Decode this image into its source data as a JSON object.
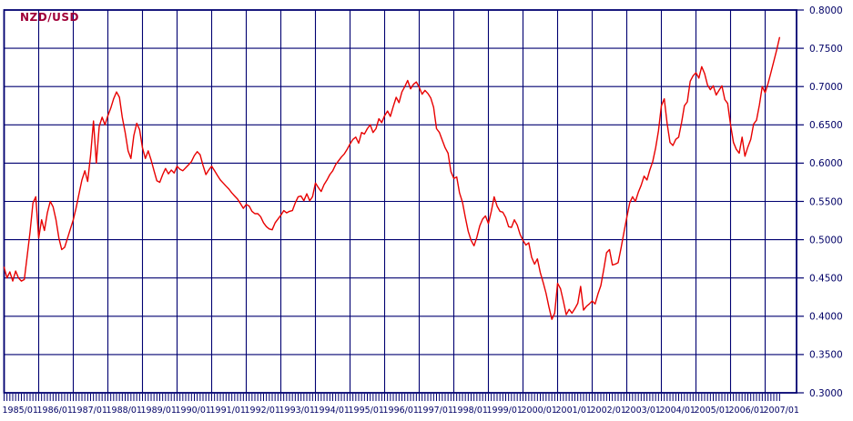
{
  "title": "NZD/USD",
  "colors": {
    "background": "#ffffff",
    "grid": "#000070",
    "axis": "#000070",
    "tick_label": "#000066",
    "title": "#a00038",
    "line": "#e80000"
  },
  "chart_data": {
    "type": "line",
    "title": "NZD/USD",
    "xlabel": "",
    "ylabel": "",
    "frequency": "monthly",
    "x_start": "1985/01",
    "x_end": "2007/06",
    "ylim": [
      0.3,
      0.8
    ],
    "y_step": 0.05,
    "grid": true,
    "legend_position": "none",
    "x_tick_labels": [
      "1985/01",
      "1986/01",
      "1987/01",
      "1988/01",
      "1989/01",
      "1990/01",
      "1991/01",
      "1992/01",
      "1993/01",
      "1994/01",
      "1995/01",
      "1996/01",
      "1997/01",
      "1998/01",
      "1999/01",
      "2000/01",
      "2001/01",
      "2002/01",
      "2003/01",
      "2004/01",
      "2005/01",
      "2006/01",
      "2007/01"
    ],
    "y_tick_labels": [
      "0.8000",
      "0.7500",
      "0.7000",
      "0.6500",
      "0.6000",
      "0.5500",
      "0.5000",
      "0.4500",
      "0.4000",
      "0.3500",
      "0.3000"
    ],
    "series": [
      {
        "name": "NZD/USD",
        "values": [
          0.464,
          0.45,
          0.458,
          0.446,
          0.459,
          0.45,
          0.446,
          0.448,
          0.478,
          0.51,
          0.548,
          0.556,
          0.502,
          0.526,
          0.512,
          0.535,
          0.55,
          0.543,
          0.526,
          0.502,
          0.487,
          0.49,
          0.502,
          0.514,
          0.526,
          0.542,
          0.56,
          0.578,
          0.59,
          0.576,
          0.61,
          0.655,
          0.6,
          0.648,
          0.66,
          0.65,
          0.662,
          0.672,
          0.684,
          0.693,
          0.686,
          0.66,
          0.64,
          0.616,
          0.606,
          0.636,
          0.652,
          0.644,
          0.62,
          0.606,
          0.616,
          0.604,
          0.59,
          0.577,
          0.575,
          0.585,
          0.593,
          0.586,
          0.591,
          0.587,
          0.596,
          0.592,
          0.59,
          0.594,
          0.598,
          0.602,
          0.61,
          0.615,
          0.611,
          0.597,
          0.585,
          0.591,
          0.596,
          0.59,
          0.584,
          0.578,
          0.574,
          0.57,
          0.566,
          0.561,
          0.557,
          0.553,
          0.547,
          0.541,
          0.546,
          0.544,
          0.537,
          0.534,
          0.534,
          0.53,
          0.522,
          0.517,
          0.514,
          0.513,
          0.522,
          0.527,
          0.532,
          0.538,
          0.535,
          0.537,
          0.538,
          0.548,
          0.556,
          0.557,
          0.551,
          0.56,
          0.551,
          0.556,
          0.574,
          0.568,
          0.563,
          0.572,
          0.578,
          0.585,
          0.59,
          0.598,
          0.603,
          0.608,
          0.612,
          0.618,
          0.625,
          0.631,
          0.634,
          0.626,
          0.64,
          0.638,
          0.645,
          0.65,
          0.64,
          0.645,
          0.658,
          0.653,
          0.662,
          0.668,
          0.661,
          0.674,
          0.686,
          0.679,
          0.693,
          0.7,
          0.708,
          0.697,
          0.703,
          0.706,
          0.699,
          0.69,
          0.695,
          0.691,
          0.685,
          0.673,
          0.645,
          0.64,
          0.63,
          0.62,
          0.613,
          0.589,
          0.58,
          0.582,
          0.561,
          0.549,
          0.529,
          0.511,
          0.499,
          0.492,
          0.503,
          0.518,
          0.527,
          0.531,
          0.521,
          0.537,
          0.556,
          0.544,
          0.537,
          0.536,
          0.529,
          0.517,
          0.516,
          0.526,
          0.519,
          0.507,
          0.499,
          0.493,
          0.496,
          0.477,
          0.468,
          0.475,
          0.457,
          0.444,
          0.43,
          0.412,
          0.396,
          0.404,
          0.443,
          0.436,
          0.42,
          0.402,
          0.409,
          0.404,
          0.41,
          0.417,
          0.439,
          0.408,
          0.413,
          0.416,
          0.42,
          0.416,
          0.429,
          0.44,
          0.461,
          0.483,
          0.487,
          0.467,
          0.468,
          0.47,
          0.489,
          0.509,
          0.529,
          0.548,
          0.556,
          0.55,
          0.562,
          0.571,
          0.583,
          0.578,
          0.591,
          0.602,
          0.62,
          0.642,
          0.675,
          0.684,
          0.652,
          0.627,
          0.623,
          0.631,
          0.634,
          0.653,
          0.675,
          0.68,
          0.707,
          0.714,
          0.718,
          0.711,
          0.726,
          0.717,
          0.702,
          0.696,
          0.701,
          0.689,
          0.695,
          0.701,
          0.683,
          0.678,
          0.65,
          0.627,
          0.618,
          0.613,
          0.634,
          0.609,
          0.621,
          0.631,
          0.651,
          0.656,
          0.676,
          0.7,
          0.692,
          0.704,
          0.718,
          0.733,
          0.748,
          0.764
        ]
      }
    ]
  }
}
